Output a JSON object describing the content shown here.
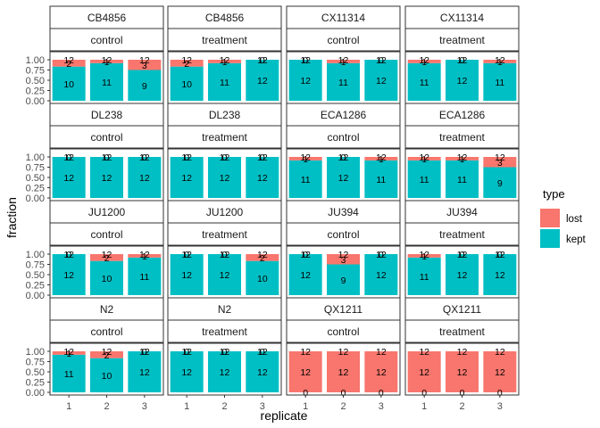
{
  "chart_data": {
    "type": "bar",
    "stacked": true,
    "xlabel": "replicate",
    "ylabel": "fraction",
    "ylim": [
      0,
      1
    ],
    "y_ticks": [
      "0.00",
      "0.25",
      "0.50",
      "0.75",
      "1.00"
    ],
    "x_ticks": [
      "1",
      "2",
      "3"
    ],
    "legend": {
      "title": "type",
      "position": "right",
      "items": [
        {
          "label": "lost",
          "color": "#F8766D"
        },
        {
          "label": "kept",
          "color": "#00BFC4"
        }
      ]
    },
    "colors": {
      "lost": "#F8766D",
      "kept": "#00BFC4",
      "panel_border": "#333333"
    },
    "total_label_value": "12",
    "panels": [
      {
        "strain": "CB4856",
        "condition": "control",
        "lost": [
          2,
          1,
          3
        ],
        "kept": [
          10,
          11,
          9
        ]
      },
      {
        "strain": "CB4856",
        "condition": "treatment",
        "lost": [
          2,
          1,
          0
        ],
        "kept": [
          10,
          11,
          12
        ]
      },
      {
        "strain": "CX11314",
        "condition": "control",
        "lost": [
          0,
          1,
          0
        ],
        "kept": [
          12,
          11,
          12
        ]
      },
      {
        "strain": "CX11314",
        "condition": "treatment",
        "lost": [
          1,
          0,
          1
        ],
        "kept": [
          11,
          12,
          11
        ]
      },
      {
        "strain": "DL238",
        "condition": "control",
        "lost": [
          0,
          0,
          0
        ],
        "kept": [
          12,
          12,
          12
        ]
      },
      {
        "strain": "DL238",
        "condition": "treatment",
        "lost": [
          0,
          0,
          0
        ],
        "kept": [
          12,
          12,
          12
        ]
      },
      {
        "strain": "ECA1286",
        "condition": "control",
        "lost": [
          1,
          0,
          1
        ],
        "kept": [
          11,
          12,
          11
        ]
      },
      {
        "strain": "ECA1286",
        "condition": "treatment",
        "lost": [
          1,
          1,
          3
        ],
        "kept": [
          11,
          11,
          9
        ]
      },
      {
        "strain": "JU1200",
        "condition": "control",
        "lost": [
          0,
          2,
          1
        ],
        "kept": [
          12,
          10,
          11
        ]
      },
      {
        "strain": "JU1200",
        "condition": "treatment",
        "lost": [
          0,
          0,
          2
        ],
        "kept": [
          12,
          12,
          10
        ]
      },
      {
        "strain": "JU394",
        "condition": "control",
        "lost": [
          0,
          3,
          0
        ],
        "kept": [
          12,
          9,
          12
        ]
      },
      {
        "strain": "JU394",
        "condition": "treatment",
        "lost": [
          1,
          0,
          0
        ],
        "kept": [
          11,
          12,
          12
        ]
      },
      {
        "strain": "N2",
        "condition": "control",
        "lost": [
          1,
          2,
          0
        ],
        "kept": [
          11,
          10,
          12
        ]
      },
      {
        "strain": "N2",
        "condition": "treatment",
        "lost": [
          0,
          0,
          0
        ],
        "kept": [
          12,
          12,
          12
        ]
      },
      {
        "strain": "QX1211",
        "condition": "control",
        "lost": [
          12,
          12,
          12
        ],
        "kept": [
          0,
          0,
          0
        ]
      },
      {
        "strain": "QX1211",
        "condition": "treatment",
        "lost": [
          12,
          12,
          12
        ],
        "kept": [
          0,
          0,
          0
        ]
      }
    ]
  }
}
